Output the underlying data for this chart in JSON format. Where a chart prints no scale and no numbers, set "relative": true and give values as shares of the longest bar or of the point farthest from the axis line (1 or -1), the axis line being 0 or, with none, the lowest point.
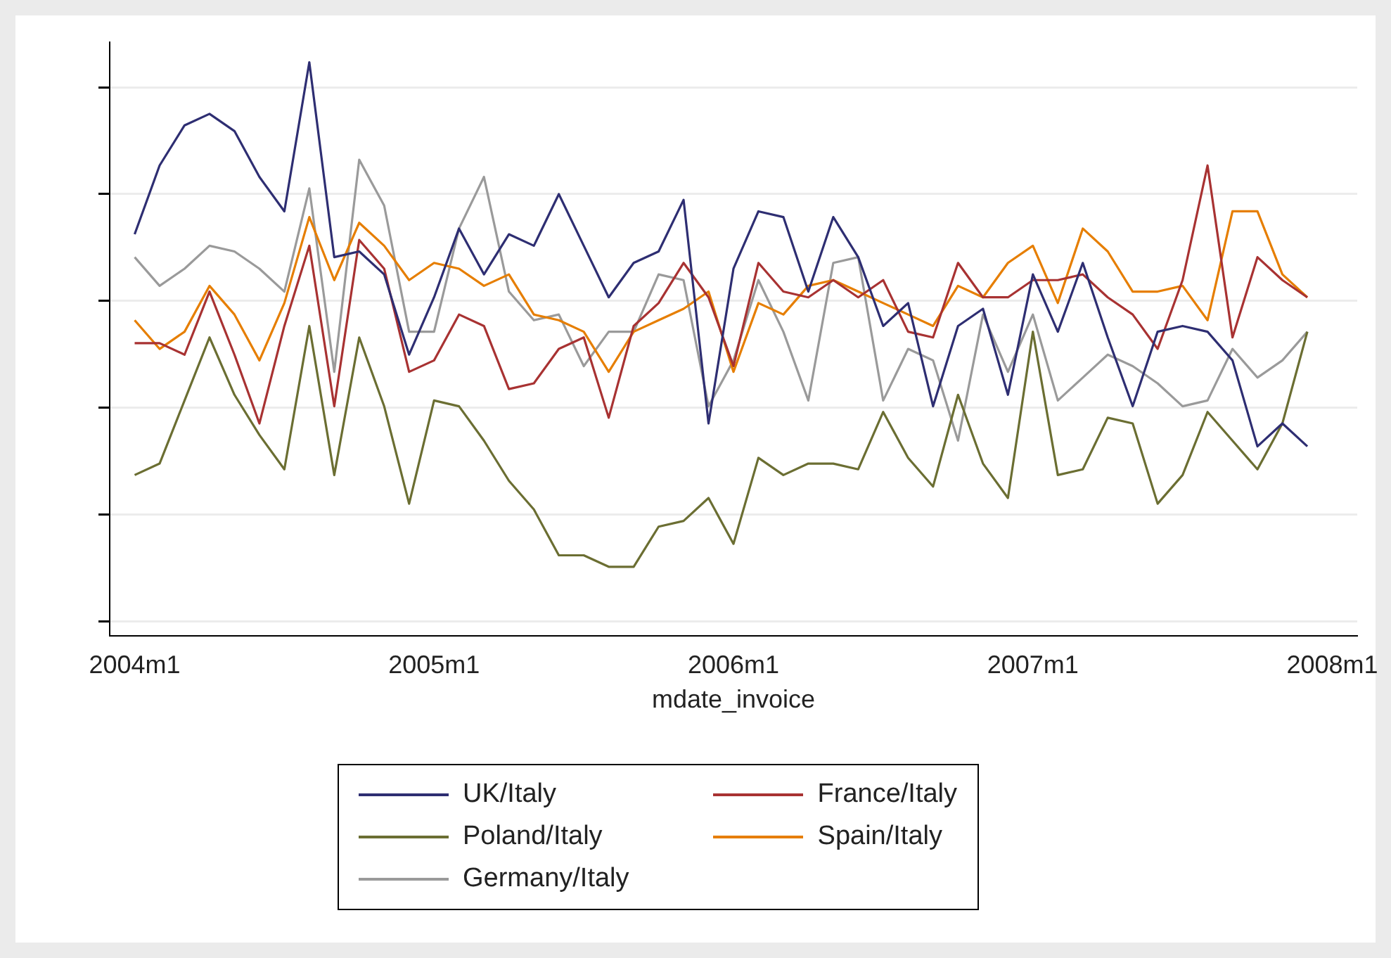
{
  "chart_data": {
    "type": "line",
    "xlabel": "mdate_invoice",
    "x": [
      "2004-01",
      "2004-02",
      "2004-03",
      "2004-04",
      "2004-05",
      "2004-06",
      "2004-07",
      "2004-08",
      "2004-09",
      "2004-10",
      "2004-11",
      "2004-12",
      "2005-01",
      "2005-02",
      "2005-03",
      "2005-04",
      "2005-05",
      "2005-06",
      "2005-07",
      "2005-08",
      "2005-09",
      "2005-10",
      "2005-11",
      "2005-12",
      "2006-01",
      "2006-02",
      "2006-03",
      "2006-04",
      "2006-05",
      "2006-06",
      "2006-07",
      "2006-08",
      "2006-09",
      "2006-10",
      "2006-11",
      "2006-12",
      "2007-01",
      "2007-02",
      "2007-03",
      "2007-04",
      "2007-05",
      "2007-06",
      "2007-07",
      "2007-08",
      "2007-09",
      "2007-10",
      "2007-11",
      "2007-12"
    ],
    "xlim": [
      "2003-12",
      "2008-02"
    ],
    "xticks": [
      {
        "value": "2004-01",
        "label": "2004m1"
      },
      {
        "value": "2005-01",
        "label": "2005m1"
      },
      {
        "value": "2006-01",
        "label": "2006m1"
      },
      {
        "value": "2007-01",
        "label": "2007m1"
      },
      {
        "value": "2008-01",
        "label": "2008m1"
      }
    ],
    "relative": true,
    "series": [
      {
        "name": "UK/Italy",
        "color": "#2e2e72",
        "values": [
          0.7,
          0.82,
          0.89,
          0.91,
          0.88,
          0.8,
          0.74,
          1.0,
          0.66,
          0.67,
          0.63,
          0.49,
          0.59,
          0.71,
          0.63,
          0.7,
          0.68,
          0.77,
          0.68,
          0.59,
          0.65,
          0.67,
          0.76,
          0.37,
          0.64,
          0.74,
          0.73,
          0.6,
          0.73,
          0.66,
          0.54,
          0.58,
          0.4,
          0.54,
          0.57,
          0.42,
          0.63,
          0.53,
          0.65,
          0.52,
          0.4,
          0.53,
          0.54,
          0.53,
          0.48,
          0.33,
          0.37,
          0.33
        ]
      },
      {
        "name": "France/Italy",
        "color": "#a83232",
        "values": [
          0.51,
          0.51,
          0.49,
          0.6,
          0.49,
          0.37,
          0.54,
          0.68,
          0.4,
          0.69,
          0.64,
          0.46,
          0.48,
          0.56,
          0.54,
          0.43,
          0.44,
          0.5,
          0.52,
          0.38,
          0.54,
          0.58,
          0.65,
          0.59,
          0.47,
          0.65,
          0.6,
          0.59,
          0.62,
          0.59,
          0.62,
          0.53,
          0.52,
          0.65,
          0.59,
          0.59,
          0.62,
          0.62,
          0.63,
          0.59,
          0.56,
          0.5,
          0.62,
          0.82,
          0.52,
          0.66,
          0.62,
          0.59
        ]
      },
      {
        "name": "Poland/Italy",
        "color": "#6b6e32",
        "values": [
          0.28,
          0.3,
          0.41,
          0.52,
          0.42,
          0.35,
          0.29,
          0.54,
          0.28,
          0.52,
          0.4,
          0.23,
          0.41,
          0.4,
          0.34,
          0.27,
          0.22,
          0.14,
          0.14,
          0.12,
          0.12,
          0.19,
          0.2,
          0.24,
          0.16,
          0.31,
          0.28,
          0.3,
          0.3,
          0.29,
          0.39,
          0.31,
          0.26,
          0.42,
          0.3,
          0.24,
          0.53,
          0.28,
          0.29,
          0.38,
          0.37,
          0.23,
          0.28,
          0.39,
          0.34,
          0.29,
          0.37,
          0.53
        ]
      },
      {
        "name": "Spain/Italy",
        "color": "#e67e00",
        "values": [
          0.55,
          0.5,
          0.53,
          0.61,
          0.56,
          0.48,
          0.58,
          0.73,
          0.62,
          0.72,
          0.68,
          0.62,
          0.65,
          0.64,
          0.61,
          0.63,
          0.56,
          0.55,
          0.53,
          0.46,
          0.53,
          0.55,
          0.57,
          0.6,
          0.46,
          0.58,
          0.56,
          0.61,
          0.62,
          0.6,
          0.58,
          0.56,
          0.54,
          0.61,
          0.59,
          0.65,
          0.68,
          0.58,
          0.71,
          0.67,
          0.6,
          0.6,
          0.61,
          0.55,
          0.74,
          0.74,
          0.63,
          0.59
        ]
      },
      {
        "name": "Germany/Italy",
        "color": "#9a9a9a",
        "values": [
          0.66,
          0.61,
          0.64,
          0.68,
          0.67,
          0.64,
          0.6,
          0.78,
          0.46,
          0.83,
          0.75,
          0.53,
          0.53,
          0.71,
          0.8,
          0.6,
          0.55,
          0.56,
          0.47,
          0.53,
          0.53,
          0.63,
          0.62,
          0.4,
          0.48,
          0.62,
          0.53,
          0.41,
          0.65,
          0.66,
          0.41,
          0.5,
          0.48,
          0.34,
          0.56,
          0.46,
          0.56,
          0.41,
          0.45,
          0.49,
          0.47,
          0.44,
          0.4,
          0.41,
          0.5,
          0.45,
          0.48,
          0.53
        ]
      }
    ],
    "grid": "y",
    "tick_labels": "x",
    "legend": "bottom",
    "marker": "none",
    "line_style": "solid"
  }
}
